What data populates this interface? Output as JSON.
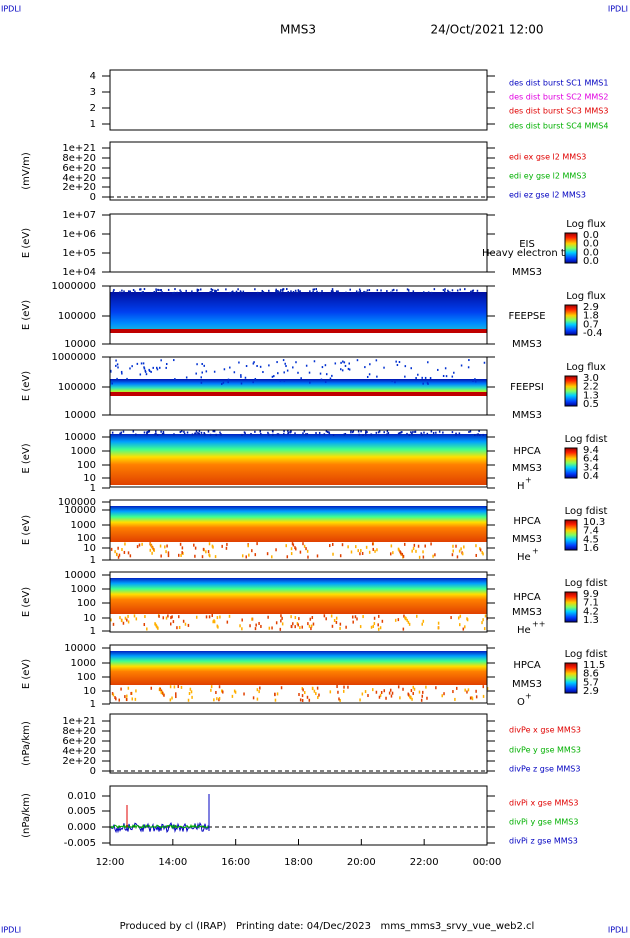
{
  "corner_labels": [
    "IPDLI",
    "IPDLI",
    "IPDLI",
    "IPDLI"
  ],
  "header": {
    "spacecraft": "MMS3",
    "datetime": "24/Oct/2021 12:00"
  },
  "panels": [
    {
      "kind": "empty",
      "yticks": [
        "4",
        "3",
        "2",
        "1"
      ],
      "right_labels": [
        {
          "text": "des dist burst SC1 MMS1",
          "color": "#0000c0"
        },
        {
          "text": "des dist burst SC2 MMS2",
          "color": "#e000e0"
        },
        {
          "text": "des dist burst SC3 MMS3",
          "color": "#e00000"
        },
        {
          "text": "des dist burst SC4 MMS4",
          "color": "#00b000"
        }
      ]
    },
    {
      "kind": "line",
      "zero_line": true,
      "ylabel": "(mV/m)",
      "yticks": [
        "1e+21",
        "8e+20",
        "6e+20",
        "4e+20",
        "2e+20",
        "0"
      ],
      "right_labels": [
        {
          "text": "edi ex gse l2 MMS3",
          "color": "#e00000"
        },
        {
          "text": "edi ey gse l2 MMS3",
          "color": "#00b000"
        },
        {
          "text": "edi ez gse l2 MMS3",
          "color": "#0000c0"
        }
      ]
    },
    {
      "kind": "spectrogram",
      "ylabel": "E (eV)",
      "yticks": [
        "1e+07",
        "1e+06",
        "1e+05",
        "1e+04"
      ],
      "instrument": [
        "EIS",
        "MMS3"
      ],
      "overlay_text": "Heavy electron to",
      "colorbar": {
        "title": "Log flux",
        "ticks": [
          "0.0",
          "0.0",
          "0.0",
          "0.0"
        ]
      }
    },
    {
      "kind": "spectrogram",
      "ylabel": "E (eV)",
      "yticks": [
        "1000000",
        "100000",
        "10000"
      ],
      "instrument": [
        "FEEPSE",
        "MMS3"
      ],
      "colorbar": {
        "title": "Log flux",
        "ticks": [
          "2.9",
          "1.8",
          "0.7",
          "-0.4"
        ]
      }
    },
    {
      "kind": "spectrogram",
      "ylabel": "E (eV)",
      "yticks": [
        "1000000",
        "100000",
        "10000"
      ],
      "instrument": [
        "FEEPSI",
        "MMS3"
      ],
      "colorbar": {
        "title": "Log flux",
        "ticks": [
          "3.0",
          "2.2",
          "1.3",
          "0.5"
        ]
      }
    },
    {
      "kind": "spectrogram",
      "ylabel": "E (eV)",
      "yticks": [
        "10000",
        "1000",
        "100",
        "10",
        "1"
      ],
      "instrument": [
        "HPCA",
        "MMS3"
      ],
      "species": {
        "base": "H",
        "sup": "+"
      },
      "colorbar": {
        "title": "Log fdist",
        "ticks": [
          "9.4",
          "6.4",
          "3.4",
          "0.4"
        ]
      }
    },
    {
      "kind": "spectrogram",
      "ylabel": "E (eV)",
      "yticks": [
        "100000",
        "10000",
        "1000",
        "100",
        "10",
        "1"
      ],
      "instrument": [
        "HPCA",
        "MMS3"
      ],
      "species": {
        "base": "He",
        "sup": "+"
      },
      "colorbar": {
        "title": "Log fdist",
        "ticks": [
          "10.3",
          "7.4",
          "4.5",
          "1.6"
        ]
      }
    },
    {
      "kind": "spectrogram",
      "ylabel": "E (eV)",
      "yticks": [
        "10000",
        "1000",
        "100",
        "10",
        "1"
      ],
      "instrument": [
        "HPCA",
        "MMS3"
      ],
      "species": {
        "base": "He",
        "sup": "++"
      },
      "colorbar": {
        "title": "Log fdist",
        "ticks": [
          "9.9",
          "7.1",
          "4.2",
          "1.3"
        ]
      }
    },
    {
      "kind": "spectrogram",
      "ylabel": "E (eV)",
      "yticks": [
        "10000",
        "1000",
        "100",
        "10",
        "1"
      ],
      "instrument": [
        "HPCA",
        "MMS3"
      ],
      "species": {
        "base": "O",
        "sup": "+"
      },
      "colorbar": {
        "title": "Log fdist",
        "ticks": [
          "11.5",
          "8.6",
          "5.7",
          "2.9"
        ]
      }
    },
    {
      "kind": "line",
      "zero_line": true,
      "ylabel": "(nPa/km)",
      "yticks": [
        "1e+21",
        "8e+20",
        "6e+20",
        "4e+20",
        "2e+20",
        "0"
      ],
      "right_labels": [
        {
          "text": "divPe x gse MMS3",
          "color": "#e00000"
        },
        {
          "text": "divPe y gse MMS3",
          "color": "#00b000"
        },
        {
          "text": "divPe z gse MMS3",
          "color": "#0000c0"
        }
      ]
    },
    {
      "kind": "line",
      "zero_line": true,
      "ylabel": "(nPa/km)",
      "yticks": [
        "0.010",
        "0.005",
        "0.000",
        "-0.005"
      ],
      "right_labels": [
        {
          "text": "divPi x gse MMS3",
          "color": "#e00000"
        },
        {
          "text": "divPi y gse MMS3",
          "color": "#00b000"
        },
        {
          "text": "divPi z gse MMS3",
          "color": "#0000c0"
        }
      ]
    }
  ],
  "xticks": [
    "12:00",
    "14:00",
    "16:00",
    "18:00",
    "20:00",
    "22:00",
    "00:00"
  ],
  "footer": "Produced by cl (IRAP)   Printing date: 04/Dec/2023   mms_mms3_srvy_vue_web2.cl"
}
